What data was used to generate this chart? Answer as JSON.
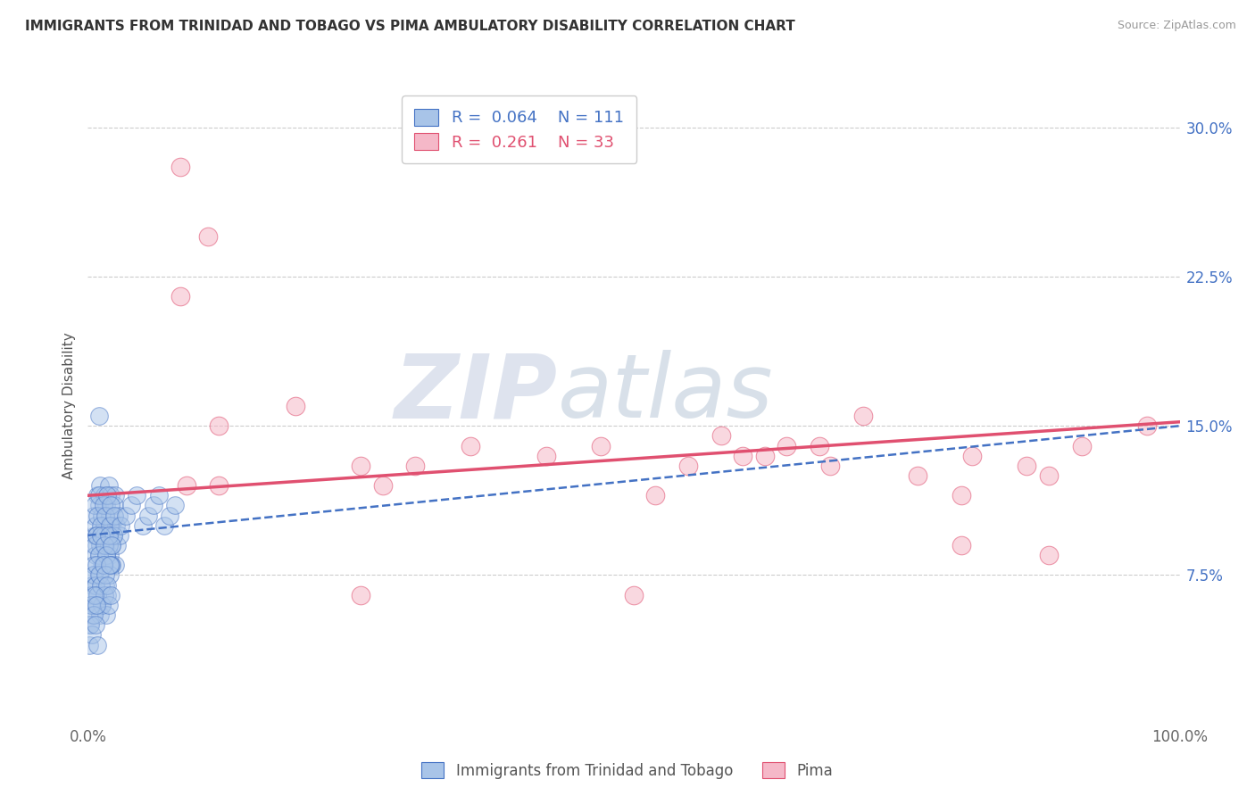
{
  "title": "IMMIGRANTS FROM TRINIDAD AND TOBAGO VS PIMA AMBULATORY DISABILITY CORRELATION CHART",
  "source": "Source: ZipAtlas.com",
  "ylabel": "Ambulatory Disability",
  "legend_label_blue": "Immigrants from Trinidad and Tobago",
  "legend_label_pink": "Pima",
  "r_blue": 0.064,
  "n_blue": 111,
  "r_pink": 0.261,
  "n_pink": 33,
  "xlim": [
    0.0,
    1.0
  ],
  "ylim": [
    0.0,
    0.32
  ],
  "xticks": [
    0.0,
    1.0
  ],
  "xtick_labels": [
    "0.0%",
    "100.0%"
  ],
  "yticks": [
    0.075,
    0.15,
    0.225,
    0.3
  ],
  "ytick_labels": [
    "7.5%",
    "15.0%",
    "22.5%",
    "30.0%"
  ],
  "color_blue": "#a8c4e8",
  "color_pink": "#f5b8c8",
  "color_blue_dark": "#4472c4",
  "color_pink_dark": "#e05070",
  "watermark_zip": "ZIP",
  "watermark_atlas": "atlas",
  "blue_scatter_x": [
    0.005,
    0.006,
    0.007,
    0.008,
    0.009,
    0.01,
    0.01,
    0.011,
    0.012,
    0.013,
    0.014,
    0.015,
    0.015,
    0.016,
    0.017,
    0.018,
    0.019,
    0.02,
    0.02,
    0.021,
    0.022,
    0.022,
    0.023,
    0.024,
    0.025,
    0.025,
    0.026,
    0.027,
    0.028,
    0.029,
    0.005,
    0.006,
    0.007,
    0.008,
    0.009,
    0.01,
    0.011,
    0.012,
    0.013,
    0.014,
    0.015,
    0.016,
    0.017,
    0.018,
    0.019,
    0.02,
    0.021,
    0.022,
    0.023,
    0.024,
    0.003,
    0.004,
    0.005,
    0.006,
    0.007,
    0.008,
    0.009,
    0.01,
    0.011,
    0.012,
    0.013,
    0.014,
    0.015,
    0.016,
    0.017,
    0.018,
    0.019,
    0.02,
    0.021,
    0.022,
    0.002,
    0.003,
    0.004,
    0.005,
    0.006,
    0.007,
    0.008,
    0.009,
    0.01,
    0.011,
    0.012,
    0.013,
    0.014,
    0.015,
    0.016,
    0.017,
    0.018,
    0.019,
    0.02,
    0.021,
    0.001,
    0.002,
    0.003,
    0.004,
    0.005,
    0.006,
    0.007,
    0.008,
    0.009,
    0.01,
    0.03,
    0.035,
    0.04,
    0.045,
    0.05,
    0.055,
    0.06,
    0.065,
    0.07,
    0.075,
    0.08
  ],
  "blue_scatter_y": [
    0.105,
    0.095,
    0.1,
    0.09,
    0.115,
    0.11,
    0.085,
    0.12,
    0.095,
    0.105,
    0.08,
    0.115,
    0.1,
    0.09,
    0.11,
    0.095,
    0.12,
    0.085,
    0.105,
    0.115,
    0.09,
    0.1,
    0.095,
    0.11,
    0.08,
    0.115,
    0.1,
    0.09,
    0.105,
    0.095,
    0.075,
    0.11,
    0.085,
    0.095,
    0.105,
    0.115,
    0.09,
    0.1,
    0.08,
    0.11,
    0.095,
    0.105,
    0.085,
    0.115,
    0.09,
    0.1,
    0.11,
    0.08,
    0.095,
    0.105,
    0.06,
    0.07,
    0.08,
    0.09,
    0.07,
    0.095,
    0.065,
    0.085,
    0.075,
    0.095,
    0.06,
    0.08,
    0.09,
    0.07,
    0.085,
    0.065,
    0.095,
    0.075,
    0.08,
    0.09,
    0.05,
    0.065,
    0.055,
    0.075,
    0.06,
    0.07,
    0.08,
    0.065,
    0.075,
    0.055,
    0.07,
    0.06,
    0.08,
    0.065,
    0.075,
    0.055,
    0.07,
    0.06,
    0.08,
    0.065,
    0.04,
    0.05,
    0.06,
    0.045,
    0.055,
    0.065,
    0.05,
    0.06,
    0.04,
    0.155,
    0.1,
    0.105,
    0.11,
    0.115,
    0.1,
    0.105,
    0.11,
    0.115,
    0.1,
    0.105,
    0.11
  ],
  "pink_scatter_x": [
    0.085,
    0.085,
    0.11,
    0.12,
    0.19,
    0.25,
    0.3,
    0.35,
    0.42,
    0.47,
    0.52,
    0.58,
    0.62,
    0.67,
    0.71,
    0.76,
    0.81,
    0.86,
    0.91,
    0.97,
    0.55,
    0.6,
    0.64,
    0.68,
    0.8,
    0.88,
    0.8,
    0.88,
    0.25,
    0.09,
    0.12,
    0.27,
    0.5
  ],
  "pink_scatter_y": [
    0.28,
    0.215,
    0.245,
    0.15,
    0.16,
    0.065,
    0.13,
    0.14,
    0.135,
    0.14,
    0.115,
    0.145,
    0.135,
    0.14,
    0.155,
    0.125,
    0.135,
    0.13,
    0.14,
    0.15,
    0.13,
    0.135,
    0.14,
    0.13,
    0.115,
    0.125,
    0.09,
    0.085,
    0.13,
    0.12,
    0.12,
    0.12,
    0.065
  ],
  "blue_line_x": [
    0.0,
    1.0
  ],
  "blue_line_y": [
    0.095,
    0.15
  ],
  "pink_line_x": [
    0.0,
    1.0
  ],
  "pink_line_y": [
    0.115,
    0.152
  ]
}
